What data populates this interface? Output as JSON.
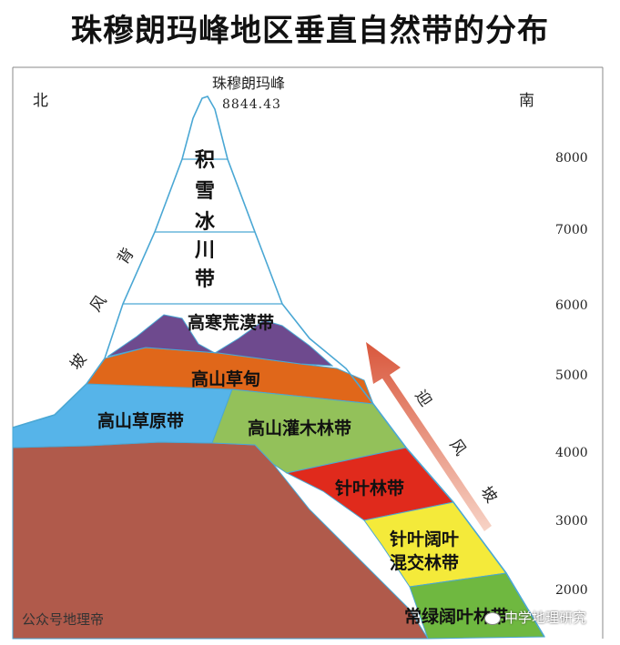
{
  "title": "珠穆朗玛峰地区垂直自然带的分布",
  "peak": {
    "name": "珠穆朗玛峰",
    "elevation": "8844.43"
  },
  "direction": {
    "north": "北",
    "south": "南"
  },
  "altitude_ticks": [
    "8000",
    "7000",
    "6000",
    "5000",
    "4000",
    "3000",
    "2000"
  ],
  "zones": {
    "snow": [
      "积",
      "雪",
      "冰",
      "川",
      "带"
    ],
    "desert": "高寒荒漠带",
    "meadow": "高山草甸",
    "steppe": "高山草原带",
    "shrub": "高山灌木林带",
    "conifer": "针叶林带",
    "mixed_line1": "针叶阔叶",
    "mixed_line2": "混交林带",
    "evergreen": "常绿阔叶林带"
  },
  "leeward": [
    "背",
    "风",
    "坡"
  ],
  "windward": [
    "迎",
    "风",
    "坡"
  ],
  "watermark_left": "公众号地理帝",
  "watermark_right": "中学地理研究",
  "colors": {
    "rock": "#b05a4b",
    "steppe": "#56b4e9",
    "meadow": "#e0671a",
    "desert": "#6e4a8e",
    "shrub": "#93c15a",
    "conifer": "#e02a1c",
    "mixed": "#f4ea3a",
    "evergreen": "#6fb840",
    "outline": "#4aa7d4"
  }
}
